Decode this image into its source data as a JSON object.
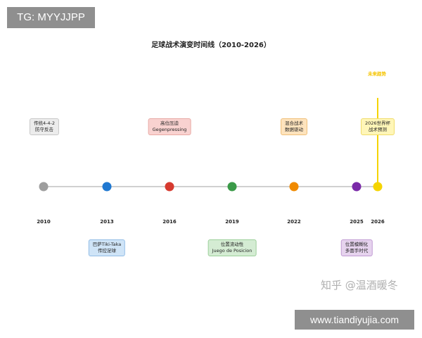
{
  "watermark_top": "TG: MYYJJPP",
  "title": "足球战术演变时间线（2010-2026）",
  "future_label": "未来趋势",
  "colors": {
    "axis": "#d0d0d0",
    "future": "#f5d400"
  },
  "nodes": [
    {
      "year": "2010",
      "color": "#9e9e9e"
    },
    {
      "year": "2013",
      "color": "#1f78d1"
    },
    {
      "year": "2016",
      "color": "#d63a2f"
    },
    {
      "year": "2019",
      "color": "#3a9a48"
    },
    {
      "year": "2022",
      "color": "#f08a00"
    },
    {
      "year": "2025",
      "color": "#7a2aa8"
    },
    {
      "year": "2026",
      "color": "#f5d400"
    }
  ],
  "labels": {
    "t2010": [
      "传统4-4-2",
      "防守反击"
    ],
    "t2013": [
      "巴萨Tiki-Taka",
      "传控足球"
    ],
    "t2016": [
      "高位压迫",
      "Gegenpressing"
    ],
    "t2019": [
      "位置流动性",
      "Juego de Posicion"
    ],
    "t2022": [
      "混合战术",
      "数据驱动"
    ],
    "t2025": [
      "位置模糊化",
      "多面手时代"
    ],
    "t2026": [
      "2026世界杯",
      "战术预测"
    ]
  },
  "watermark_zhihu": "知乎 @温酒暖冬",
  "watermark_site": "www.tiandiyujia.com"
}
